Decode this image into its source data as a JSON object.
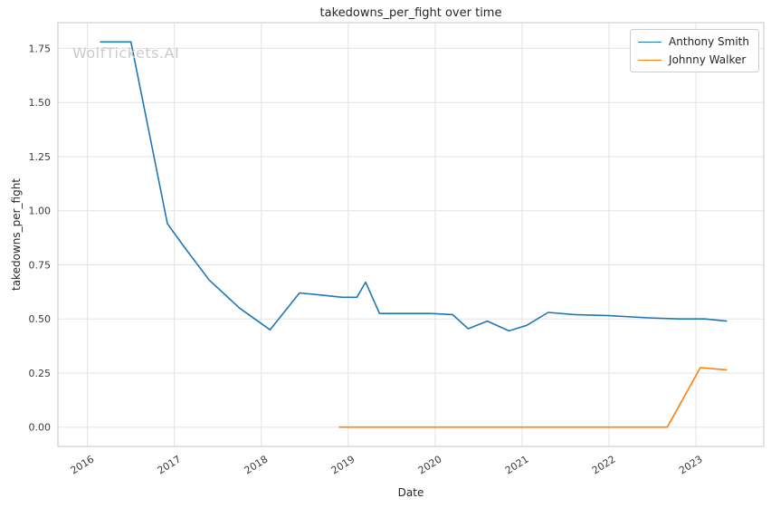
{
  "chart_data": {
    "type": "line",
    "title": "takedowns_per_fight over time",
    "xlabel": "Date",
    "ylabel": "takedowns_per_fight",
    "xlim": [
      2015.66,
      2023.78
    ],
    "ylim": [
      -0.089,
      1.869
    ],
    "xticks": [
      2016,
      2017,
      2018,
      2019,
      2020,
      2021,
      2022,
      2023
    ],
    "yticks": [
      0.0,
      0.25,
      0.5,
      0.75,
      1.0,
      1.25,
      1.5,
      1.75
    ],
    "grid": true,
    "legend_position": "upper right",
    "series": [
      {
        "name": "Anthony Smith",
        "color": "#1f77b4",
        "x": [
          2016.15,
          2016.5,
          2016.92,
          2017.1,
          2017.4,
          2017.75,
          2018.1,
          2018.44,
          2018.7,
          2018.93,
          2019.1,
          2019.2,
          2019.36,
          2019.6,
          2019.95,
          2020.2,
          2020.38,
          2020.6,
          2020.85,
          2021.05,
          2021.3,
          2021.6,
          2022.0,
          2022.45,
          2022.8,
          2023.1,
          2023.35
        ],
        "values": [
          1.78,
          1.78,
          0.94,
          0.84,
          0.68,
          0.55,
          0.45,
          0.62,
          0.61,
          0.6,
          0.6,
          0.67,
          0.525,
          0.525,
          0.525,
          0.52,
          0.455,
          0.49,
          0.445,
          0.47,
          0.53,
          0.52,
          0.515,
          0.505,
          0.5,
          0.5,
          0.49
        ]
      },
      {
        "name": "Johnny Walker",
        "color": "#ff7f0e",
        "x": [
          2018.9,
          2019.5,
          2020.0,
          2020.5,
          2021.0,
          2021.5,
          2022.0,
          2022.67,
          2023.05,
          2023.35
        ],
        "values": [
          0.0,
          0.0,
          0.0,
          0.0,
          0.0,
          0.0,
          0.0,
          0.0,
          0.275,
          0.265
        ]
      }
    ]
  },
  "watermark": {
    "text": "WolfTickets.AI",
    "color": "#cbcbcb"
  },
  "style": {
    "background": "#ffffff",
    "grid_color": "#e3e3e3",
    "spine_color": "#cfcfcf",
    "tick_color": "#3b3b3b",
    "text_color": "#262626"
  }
}
